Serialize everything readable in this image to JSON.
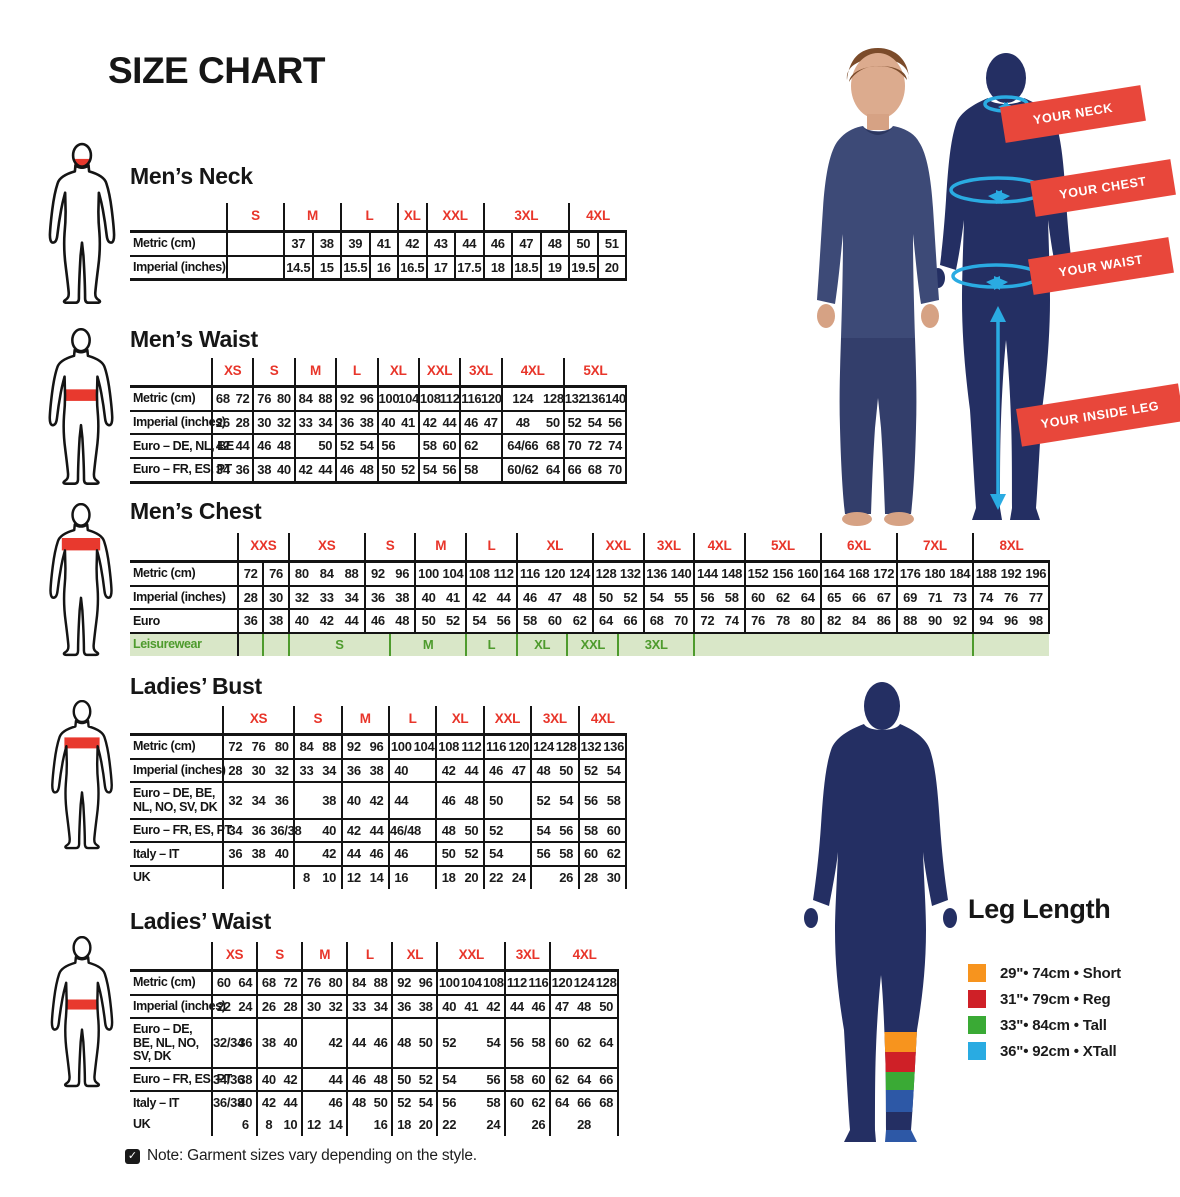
{
  "title": "SIZE CHART",
  "note": {
    "text": "Note: Garment sizes vary depending on the style."
  },
  "banners": [
    "YOUR NECK",
    "YOUR CHEST",
    "YOUR WAIST",
    "YOUR INSIDE LEG"
  ],
  "leg_length": {
    "title": "Leg Length",
    "items": [
      {
        "color": "#f7941e",
        "text": "29\"• 74cm • Short"
      },
      {
        "color": "#cf2027",
        "text": "31\"• 79cm • Reg"
      },
      {
        "color": "#3aaa35",
        "text": "33\"• 84cm • Tall"
      },
      {
        "color": "#29abe2",
        "text": "36\"• 92cm • XTall"
      }
    ]
  },
  "colors": {
    "accent_red": "#e8392e",
    "banner_red": "#e8473b",
    "navy": "#242f63",
    "cyan": "#2aabe2",
    "leisure_bg": "#d9e7c8",
    "leisure_text": "#4e9b2d"
  },
  "tables": [
    {
      "id": "mens-neck",
      "heading": "Men’s Neck",
      "grid": "all",
      "sizes": [
        {
          "label": "S",
          "span": 2
        },
        {
          "label": "M",
          "span": 2
        },
        {
          "label": "L",
          "span": 2
        },
        {
          "label": "XL",
          "span": 1
        },
        {
          "label": "XXL",
          "span": 2
        },
        {
          "label": "3XL",
          "span": 3
        },
        {
          "label": "4XL",
          "span": 2
        }
      ],
      "rows": [
        {
          "label": "Metric (cm)",
          "cells": [
            {
              "t": "",
              "s": 2
            },
            "37",
            "38",
            "39",
            "41",
            "42",
            "43",
            "44",
            "46",
            "47",
            "48",
            "50",
            "51"
          ]
        },
        {
          "label": "Imperial (inches)",
          "cells": [
            {
              "t": "",
              "s": 2
            },
            "14.5",
            "15",
            "15.5",
            "16",
            "16.5",
            "17",
            "17.5",
            "18",
            "18.5",
            "19",
            "19.5",
            "20"
          ]
        }
      ]
    },
    {
      "id": "mens-waist",
      "heading": "Men’s Waist",
      "grid": "groups",
      "sizes": [
        {
          "label": "XS",
          "span": 2
        },
        {
          "label": "S",
          "span": 2
        },
        {
          "label": "M",
          "span": 2
        },
        {
          "label": "L",
          "span": 2
        },
        {
          "label": "XL",
          "span": 2
        },
        {
          "label": "XXL",
          "span": 2
        },
        {
          "label": "3XL",
          "span": 2
        },
        {
          "label": "4XL",
          "span": 3
        },
        {
          "label": "5XL",
          "span": 3
        }
      ],
      "rows": [
        {
          "label": "Metric (cm)",
          "cells": [
            "68",
            "72",
            "76",
            "80",
            "84",
            "88",
            "92",
            "96",
            "100",
            "104",
            "108",
            "112",
            "116",
            "120",
            {
              "t": "124",
              "s": 2
            },
            "128",
            "132",
            "136",
            "140"
          ]
        },
        {
          "label": "Imperial (inches)",
          "cells": [
            "26",
            "28",
            "30",
            "32",
            "33",
            "34",
            "36",
            "38",
            "40",
            "41",
            "42",
            "44",
            "46",
            "47",
            {
              "t": "48",
              "s": 2
            },
            "50",
            "52",
            "54",
            "56"
          ]
        },
        {
          "label": "Euro – DE, NL, BE",
          "cells": [
            "42",
            "44",
            "46",
            "48",
            "",
            "50",
            "52",
            "54",
            "56",
            "",
            "58",
            "60",
            "62",
            "",
            {
              "t": "64/66",
              "s": 2
            },
            "68",
            "70",
            "72",
            "74"
          ]
        },
        {
          "label": "Euro – FR, ES, PT",
          "cells": [
            "34",
            "36",
            "38",
            "40",
            "42",
            "44",
            "46",
            "48",
            "50",
            "52",
            "54",
            "56",
            "58",
            "",
            {
              "t": "60/62",
              "s": 2
            },
            "64",
            "66",
            "68",
            "70"
          ]
        }
      ]
    },
    {
      "id": "mens-chest",
      "heading": "Men’s Chest",
      "grid": "groups",
      "extra_dividers": [
        1
      ],
      "sizes": [
        {
          "label": "XXS",
          "span": 2
        },
        {
          "label": "XS",
          "span": 3
        },
        {
          "label": "S",
          "span": 2
        },
        {
          "label": "M",
          "span": 2
        },
        {
          "label": "L",
          "span": 2
        },
        {
          "label": "XL",
          "span": 3
        },
        {
          "label": "XXL",
          "span": 2
        },
        {
          "label": "3XL",
          "span": 2
        },
        {
          "label": "4XL",
          "span": 2
        },
        {
          "label": "5XL",
          "span": 3
        },
        {
          "label": "6XL",
          "span": 3
        },
        {
          "label": "7XL",
          "span": 3
        },
        {
          "label": "8XL",
          "span": 3
        }
      ],
      "rows": [
        {
          "label": "Metric (cm)",
          "cells": [
            "72",
            "76",
            "80",
            "84",
            "88",
            "92",
            "96",
            "100",
            "104",
            "108",
            "112",
            "116",
            "120",
            "124",
            "128",
            "132",
            "136",
            "140",
            "144",
            "148",
            "152",
            "156",
            "160",
            "164",
            "168",
            "172",
            "176",
            "180",
            "184",
            "188",
            "192",
            "196"
          ]
        },
        {
          "label": "Imperial (inches)",
          "cells": [
            "28",
            "30",
            "32",
            "33",
            "34",
            "36",
            "38",
            "40",
            "41",
            "42",
            "44",
            "46",
            "47",
            "48",
            "50",
            "52",
            "54",
            "55",
            "56",
            "58",
            "60",
            "62",
            "64",
            "65",
            "66",
            "67",
            "69",
            "71",
            "73",
            "74",
            "76",
            "77"
          ]
        },
        {
          "label": "Euro",
          "cells": [
            "36",
            "38",
            "40",
            "42",
            "44",
            "46",
            "48",
            "50",
            "52",
            "54",
            "56",
            "58",
            "60",
            "62",
            "64",
            "66",
            "68",
            "70",
            "72",
            "74",
            "76",
            "78",
            "80",
            "82",
            "84",
            "86",
            "88",
            "90",
            "92",
            "94",
            "96",
            "98"
          ]
        },
        {
          "label": "Leisurewear",
          "cls": "leisure",
          "cells": [
            {
              "t": "",
              "s": 1
            },
            {
              "t": "",
              "s": 1
            },
            {
              "t": "S",
              "s": 4
            },
            {
              "t": "M",
              "s": 3
            },
            {
              "t": "L",
              "s": 2
            },
            {
              "t": "XL",
              "s": 2
            },
            {
              "t": "XXL",
              "s": 2
            },
            {
              "t": "3XL",
              "s": 3
            },
            {
              "t": "",
              "s": 11
            },
            {
              "t": "",
              "s": 3
            }
          ]
        }
      ]
    },
    {
      "id": "ladies-bust",
      "heading": "Ladies’ Bust",
      "grid": "groups",
      "sizes": [
        {
          "label": "XS",
          "span": 3
        },
        {
          "label": "S",
          "span": 2
        },
        {
          "label": "M",
          "span": 2
        },
        {
          "label": "L",
          "span": 2
        },
        {
          "label": "XL",
          "span": 2
        },
        {
          "label": "XXL",
          "span": 2
        },
        {
          "label": "3XL",
          "span": 2
        },
        {
          "label": "4XL",
          "span": 2
        }
      ],
      "rows": [
        {
          "label": "Metric (cm)",
          "cells": [
            "72",
            "76",
            "80",
            "84",
            "88",
            "92",
            "96",
            "100",
            "104",
            "108",
            "112",
            "116",
            "120",
            "124",
            "128",
            "132",
            "136"
          ]
        },
        {
          "label": "Imperial (inches)",
          "cells": [
            "28",
            "30",
            "32",
            "33",
            "34",
            "36",
            "38",
            "40",
            "",
            "42",
            "44",
            "46",
            "47",
            "48",
            "50",
            "52",
            "54"
          ]
        },
        {
          "label": "Euro –  DE, BE, NL, NO, SV, DK",
          "cells": [
            "32",
            "34",
            "36",
            "",
            "38",
            "40",
            "42",
            "44",
            "",
            "46",
            "48",
            "50",
            "",
            "52",
            "54",
            "56",
            "58"
          ]
        },
        {
          "label": "Euro – FR, ES, PT",
          "cells": [
            "34",
            "36",
            "36/38",
            "",
            "40",
            "42",
            "44",
            "46/48",
            "",
            "48",
            "50",
            "52",
            "",
            "54",
            "56",
            "58",
            "60"
          ]
        },
        {
          "label": "Italy – IT",
          "cells": [
            "36",
            "38",
            "40",
            "",
            "42",
            "44",
            "46",
            "46",
            "",
            "50",
            "52",
            "54",
            "",
            "56",
            "58",
            "60",
            "62"
          ]
        },
        {
          "label": "UK",
          "cells": [
            "",
            "",
            "",
            "8",
            "10",
            "12",
            "14",
            "16",
            "",
            "18",
            "20",
            "22",
            "24",
            "",
            "26",
            "28",
            "30"
          ]
        }
      ]
    },
    {
      "id": "ladies-waist",
      "heading": "Ladies’ Waist",
      "grid": "groups",
      "sizes": [
        {
          "label": "XS",
          "span": 2
        },
        {
          "label": "S",
          "span": 2
        },
        {
          "label": "M",
          "span": 2
        },
        {
          "label": "L",
          "span": 2
        },
        {
          "label": "XL",
          "span": 2
        },
        {
          "label": "XXL",
          "span": 3
        },
        {
          "label": "3XL",
          "span": 2
        },
        {
          "label": "4XL",
          "span": 3
        }
      ],
      "rows": [
        {
          "label": "Metric (cm)",
          "cells": [
            "60",
            "64",
            "68",
            "72",
            "76",
            "80",
            "84",
            "88",
            "92",
            "96",
            "100",
            "104",
            "108",
            "112",
            "116",
            "120",
            "124",
            "128"
          ]
        },
        {
          "label": "Imperial (inches)",
          "cells": [
            "22",
            "24",
            "26",
            "28",
            "30",
            "32",
            "33",
            "34",
            "36",
            "38",
            "40",
            "41",
            "42",
            "44",
            "46",
            "47",
            "48",
            "50"
          ]
        },
        {
          "label": "Euro – DE, BE, NL, NO, SV, DK",
          "cells": [
            "32/34",
            "36",
            "38",
            "40",
            "",
            "42",
            "44",
            "46",
            "48",
            "50",
            "52",
            "",
            "54",
            "56",
            "58",
            "60",
            "62",
            "64"
          ]
        },
        {
          "label": "Euro – FR, ES, PT",
          "cells": [
            "34/36",
            "38",
            "40",
            "42",
            "",
            "44",
            "46",
            "48",
            "50",
            "52",
            "54",
            "",
            "56",
            "58",
            "60",
            "62",
            "64",
            "66"
          ]
        },
        {
          "label": "Italy – IT",
          "cells": [
            "36/38",
            "40",
            "42",
            "44",
            "",
            "46",
            "48",
            "50",
            "52",
            "54",
            "56",
            "",
            "58",
            "60",
            "62",
            "64",
            "66",
            "68"
          ]
        },
        {
          "label": "UK",
          "cls": "nosep",
          "cells": [
            "",
            "6",
            "8",
            "10",
            "12",
            "14",
            "",
            "16",
            "18",
            "20",
            "22",
            "",
            "24",
            "",
            "26",
            "",
            "28",
            ""
          ]
        }
      ]
    }
  ]
}
